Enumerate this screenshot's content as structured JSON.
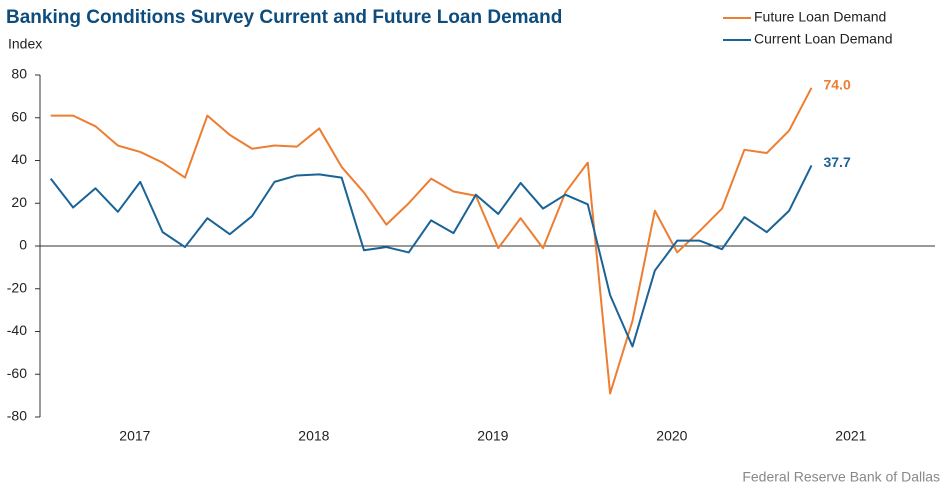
{
  "chart_data": {
    "type": "line",
    "title": "Banking Conditions Survey Current and Future Loan Demand",
    "ylabel": "Index",
    "source": "Federal Reserve Bank of Dallas",
    "x": [
      2017.03,
      2017.155,
      2017.28,
      2017.405,
      2017.53,
      2017.655,
      2017.78,
      2017.905,
      2018.03,
      2018.155,
      2018.28,
      2018.405,
      2018.53,
      2018.655,
      2018.78,
      2018.905,
      2019.03,
      2019.155,
      2019.28,
      2019.405,
      2019.53,
      2019.655,
      2019.78,
      2019.905,
      2020.03,
      2020.155,
      2020.28,
      2020.405,
      2020.53,
      2020.655,
      2020.78,
      2020.905,
      2021.03,
      2021.155,
      2021.28
    ],
    "series": [
      {
        "name": "Future Loan Demand",
        "color": "#ed7d31",
        "values": [
          61,
          61,
          56,
          47,
          44,
          39,
          32,
          61,
          52,
          45.5,
          47,
          46.5,
          55,
          37,
          25,
          10,
          20,
          31.5,
          25.5,
          23.5,
          -1,
          13,
          -1,
          25,
          39,
          -69,
          -35,
          16.5,
          -3,
          7,
          17.5,
          45,
          43.5,
          54,
          74
        ],
        "value_labels": [
          null,
          null,
          null,
          null,
          null,
          null,
          null,
          null,
          null,
          null,
          null,
          null,
          null,
          null,
          null,
          null,
          null,
          null,
          null,
          null,
          null,
          null,
          null,
          null,
          null,
          null,
          null,
          null,
          null,
          null,
          null,
          null,
          null,
          null,
          "74.0"
        ]
      },
      {
        "name": "Current Loan Demand",
        "color": "#1a6397",
        "values": [
          31.5,
          18,
          27,
          16,
          30,
          6.5,
          -0.5,
          13,
          5.5,
          14,
          30,
          33,
          33.5,
          32,
          -2,
          -0.5,
          -3,
          12,
          6,
          24,
          15,
          29.5,
          17.5,
          24,
          19.5,
          -23,
          -47,
          -11.5,
          2.5,
          2.5,
          -1.5,
          13.5,
          6.5,
          16.5,
          37.7
        ],
        "value_labels": [
          null,
          null,
          null,
          null,
          null,
          null,
          null,
          null,
          null,
          null,
          null,
          null,
          null,
          null,
          null,
          null,
          null,
          null,
          null,
          null,
          null,
          null,
          null,
          null,
          null,
          null,
          null,
          null,
          null,
          null,
          null,
          null,
          null,
          null,
          "37.7"
        ]
      }
    ],
    "xlim": [
      2016.97,
      2021.97
    ],
    "xticks": [
      {
        "value": 2017.5,
        "label": "2017"
      },
      {
        "value": 2018.5,
        "label": "2018"
      },
      {
        "value": 2019.5,
        "label": "2019"
      },
      {
        "value": 2020.5,
        "label": "2020"
      },
      {
        "value": 2021.5,
        "label": "2021"
      }
    ],
    "ylim": [
      -80,
      80
    ],
    "yticks": [
      -80,
      -60,
      -40,
      -20,
      0,
      20,
      40,
      60,
      80
    ],
    "legend": "upper right",
    "grid": false
  }
}
